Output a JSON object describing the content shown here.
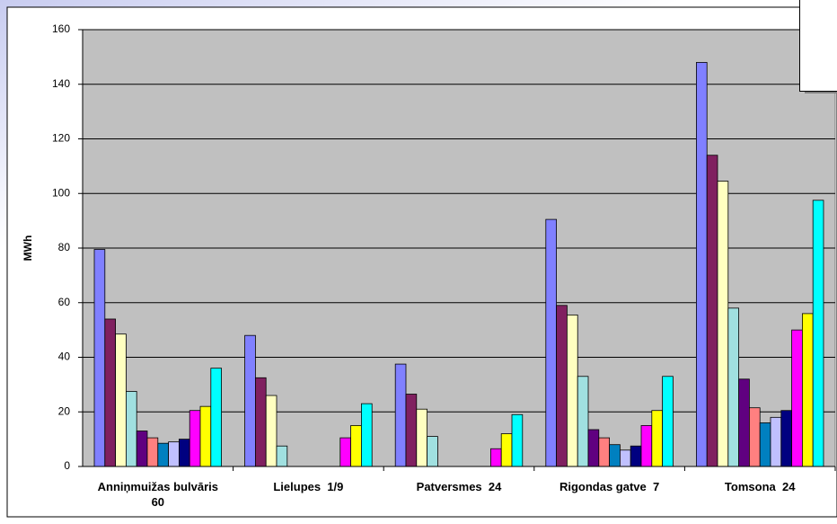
{
  "chart_data": {
    "type": "bar",
    "y_label": "MWh",
    "categories": [
      "Anniņmuižas bulvāris 60",
      "Lielupes  1/9",
      "Patversmes  24",
      "Rigondas gatve  7",
      "Tomsona  24"
    ],
    "series": [
      {
        "color": "#8080ff",
        "values": [
          79.5,
          48,
          37.5,
          90.5,
          148
        ]
      },
      {
        "color": "#802060",
        "values": [
          54,
          32.5,
          26.5,
          59,
          114
        ]
      },
      {
        "color": "#ffffc0",
        "values": [
          48.5,
          26,
          21,
          55.5,
          104.5
        ]
      },
      {
        "color": "#a0e0e0",
        "values": [
          27.5,
          7.5,
          11,
          33,
          58
        ]
      },
      {
        "color": "#600080",
        "values": [
          13,
          null,
          null,
          13.5,
          32
        ]
      },
      {
        "color": "#ff8080",
        "values": [
          10.5,
          null,
          null,
          10.5,
          21.5
        ]
      },
      {
        "color": "#0080c0",
        "values": [
          8.5,
          null,
          null,
          8,
          16
        ]
      },
      {
        "color": "#c0c0ff",
        "values": [
          9,
          null,
          null,
          6,
          18
        ]
      },
      {
        "color": "#000080",
        "values": [
          10,
          null,
          null,
          7.5,
          20.5
        ]
      },
      {
        "color": "#ff00ff",
        "values": [
          20.5,
          10.5,
          6.5,
          15,
          50
        ]
      },
      {
        "color": "#ffff00",
        "values": [
          22,
          15,
          12,
          20.5,
          56
        ]
      },
      {
        "color": "#00ffff",
        "values": [
          36,
          23,
          19,
          33,
          97.5
        ]
      }
    ],
    "ylim": [
      0,
      160
    ],
    "yticks": [
      0,
      20,
      40,
      60,
      80,
      100,
      120,
      140,
      160
    ],
    "grid": true,
    "plot_color": "#c0c0c0"
  }
}
